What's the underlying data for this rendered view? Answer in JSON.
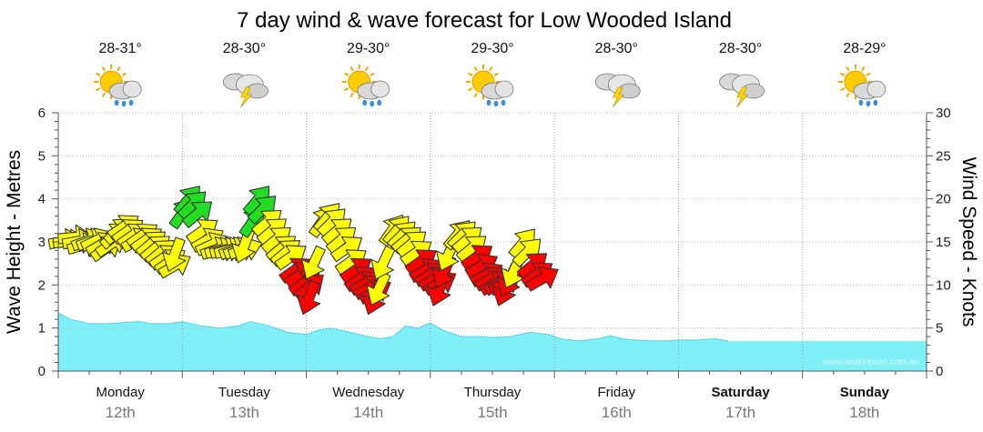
{
  "chart_data": {
    "type": "area",
    "title": "7 day wind & wave forecast for Low Wooded Island",
    "ylabel_left": "Wave Height - Metres",
    "ylabel_right": "Wind Speed - Knots",
    "ylim_left": [
      0,
      6
    ],
    "ylim_right": [
      0,
      30
    ],
    "yticks_left": [
      "0",
      "1",
      "2",
      "3",
      "4",
      "5",
      "6"
    ],
    "yticks_right": [
      "0",
      "5",
      "10",
      "15",
      "20",
      "25",
      "30"
    ],
    "credit": "www.seabreeze.com.au",
    "days": [
      {
        "name": "Monday",
        "date": "12th",
        "temp": "28-31°",
        "weather": "sun-cloud-showers",
        "bold": false
      },
      {
        "name": "Tuesday",
        "date": "13th",
        "temp": "28-30°",
        "weather": "storm",
        "bold": false
      },
      {
        "name": "Wednesday",
        "date": "14th",
        "temp": "29-30°",
        "weather": "sun-cloud-showers",
        "bold": false
      },
      {
        "name": "Thursday",
        "date": "15th",
        "temp": "29-30°",
        "weather": "sun-cloud-showers",
        "bold": false
      },
      {
        "name": "Friday",
        "date": "16th",
        "temp": "28-30°",
        "weather": "storm",
        "bold": false
      },
      {
        "name": "Saturday",
        "date": "17th",
        "temp": "28-30°",
        "weather": "storm",
        "bold": true
      },
      {
        "name": "Sunday",
        "date": "18th",
        "temp": "28-29°",
        "weather": "sun-cloud-showers",
        "bold": true
      }
    ],
    "wave_series": {
      "name": "Wave Height (m)",
      "color": "#7ff0f8",
      "edge_color": "#55d0e6",
      "points": [
        [
          0,
          1.35
        ],
        [
          0.2,
          1.2
        ],
        [
          0.5,
          1.1
        ],
        [
          0.8,
          1.1
        ],
        [
          1.0,
          1.12
        ],
        [
          1.3,
          1.15
        ],
        [
          1.5,
          1.1
        ],
        [
          1.8,
          1.1
        ],
        [
          2.0,
          1.15
        ],
        [
          2.3,
          1.05
        ],
        [
          2.6,
          1.0
        ],
        [
          2.9,
          1.05
        ],
        [
          3.1,
          1.15
        ],
        [
          3.4,
          1.05
        ],
        [
          3.7,
          0.9
        ],
        [
          4.0,
          0.85
        ],
        [
          4.2,
          0.95
        ],
        [
          4.4,
          1.0
        ],
        [
          4.7,
          0.9
        ],
        [
          5.0,
          0.8
        ],
        [
          5.2,
          0.75
        ],
        [
          5.4,
          0.8
        ],
        [
          5.6,
          1.05
        ],
        [
          5.8,
          1.0
        ],
        [
          6.0,
          1.12
        ],
        [
          6.2,
          0.95
        ],
        [
          6.5,
          0.8
        ],
        [
          6.8,
          0.8
        ],
        [
          7.0,
          0.78
        ],
        [
          7.3,
          0.8
        ],
        [
          7.6,
          0.9
        ],
        [
          7.9,
          0.85
        ],
        [
          8.1,
          0.75
        ],
        [
          8.4,
          0.7
        ],
        [
          8.7,
          0.75
        ],
        [
          8.9,
          0.82
        ],
        [
          9.1,
          0.75
        ],
        [
          9.3,
          0.72
        ],
        [
          9.6,
          0.7
        ],
        [
          9.8,
          0.7
        ],
        [
          10.0,
          0.72
        ],
        [
          10.3,
          0.72
        ],
        [
          10.6,
          0.75
        ],
        [
          10.8,
          0.7
        ]
      ]
    },
    "wind_series": {
      "name": "Wind Speed (kn)",
      "colors": {
        "green": "#22dd22",
        "yellow": "#ffff00",
        "red": "#ff0000"
      },
      "arrows": [
        {
          "x": 0.05,
          "kn": 15,
          "dir": 80,
          "c": "yellow"
        },
        {
          "x": 0.12,
          "kn": 15,
          "dir": 85,
          "c": "yellow"
        },
        {
          "x": 0.2,
          "kn": 15.5,
          "dir": 85,
          "c": "yellow"
        },
        {
          "x": 0.27,
          "kn": 15,
          "dir": 80,
          "c": "yellow"
        },
        {
          "x": 0.35,
          "kn": 14.5,
          "dir": 75,
          "c": "yellow"
        },
        {
          "x": 0.42,
          "kn": 15,
          "dir": 70,
          "c": "yellow"
        },
        {
          "x": 0.5,
          "kn": 15,
          "dir": 70,
          "c": "yellow"
        },
        {
          "x": 0.57,
          "kn": 15,
          "dir": 65,
          "c": "yellow"
        },
        {
          "x": 0.65,
          "kn": 14.5,
          "dir": 60,
          "c": "yellow"
        },
        {
          "x": 0.72,
          "kn": 14,
          "dir": 55,
          "c": "yellow"
        },
        {
          "x": 0.8,
          "kn": 14.5,
          "dir": 55,
          "c": "yellow"
        },
        {
          "x": 0.87,
          "kn": 15.5,
          "dir": 50,
          "c": "yellow"
        },
        {
          "x": 0.93,
          "kn": 16,
          "dir": 50,
          "c": "yellow"
        },
        {
          "x": 1.0,
          "kn": 16.5,
          "dir": 55,
          "c": "yellow"
        },
        {
          "x": 1.07,
          "kn": 16,
          "dir": 55,
          "c": "yellow"
        },
        {
          "x": 1.15,
          "kn": 15.5,
          "dir": 55,
          "c": "yellow"
        },
        {
          "x": 1.22,
          "kn": 15,
          "dir": 60,
          "c": "yellow"
        },
        {
          "x": 1.3,
          "kn": 15.5,
          "dir": 55,
          "c": "yellow"
        },
        {
          "x": 1.37,
          "kn": 15,
          "dir": 55,
          "c": "yellow"
        },
        {
          "x": 1.45,
          "kn": 14.5,
          "dir": 50,
          "c": "yellow"
        },
        {
          "x": 1.52,
          "kn": 14,
          "dir": 50,
          "c": "yellow"
        },
        {
          "x": 1.6,
          "kn": 13.5,
          "dir": 50,
          "c": "yellow"
        },
        {
          "x": 1.67,
          "kn": 13,
          "dir": 55,
          "c": "yellow"
        },
        {
          "x": 1.75,
          "kn": 12.5,
          "dir": 55,
          "c": "yellow"
        },
        {
          "x": 1.82,
          "kn": 12,
          "dir": 60,
          "c": "yellow"
        },
        {
          "x": 1.9,
          "kn": 14,
          "dir": 200,
          "c": "yellow"
        },
        {
          "x": 1.97,
          "kn": 18,
          "dir": 35,
          "c": "green"
        },
        {
          "x": 2.05,
          "kn": 19.5,
          "dir": 40,
          "c": "green"
        },
        {
          "x": 2.12,
          "kn": 19,
          "dir": 45,
          "c": "green"
        },
        {
          "x": 2.2,
          "kn": 18,
          "dir": 50,
          "c": "green"
        },
        {
          "x": 2.27,
          "kn": 16,
          "dir": 55,
          "c": "yellow"
        },
        {
          "x": 2.35,
          "kn": 15,
          "dir": 60,
          "c": "yellow"
        },
        {
          "x": 2.42,
          "kn": 14.5,
          "dir": 65,
          "c": "yellow"
        },
        {
          "x": 2.5,
          "kn": 14,
          "dir": 70,
          "c": "yellow"
        },
        {
          "x": 2.57,
          "kn": 14,
          "dir": 75,
          "c": "yellow"
        },
        {
          "x": 2.65,
          "kn": 14,
          "dir": 75,
          "c": "yellow"
        },
        {
          "x": 2.72,
          "kn": 14,
          "dir": 75,
          "c": "yellow"
        },
        {
          "x": 2.8,
          "kn": 14,
          "dir": 70,
          "c": "yellow"
        },
        {
          "x": 2.87,
          "kn": 14,
          "dir": 70,
          "c": "yellow"
        },
        {
          "x": 2.95,
          "kn": 14,
          "dir": 70,
          "c": "yellow"
        },
        {
          "x": 3.02,
          "kn": 15,
          "dir": 200,
          "c": "yellow"
        },
        {
          "x": 3.1,
          "kn": 17,
          "dir": 35,
          "c": "green"
        },
        {
          "x": 3.17,
          "kn": 19.5,
          "dir": 40,
          "c": "green"
        },
        {
          "x": 3.25,
          "kn": 18.5,
          "dir": 45,
          "c": "green"
        },
        {
          "x": 3.32,
          "kn": 17,
          "dir": 50,
          "c": "yellow"
        },
        {
          "x": 3.4,
          "kn": 16,
          "dir": 50,
          "c": "yellow"
        },
        {
          "x": 3.47,
          "kn": 15,
          "dir": 50,
          "c": "yellow"
        },
        {
          "x": 3.55,
          "kn": 14,
          "dir": 50,
          "c": "yellow"
        },
        {
          "x": 3.62,
          "kn": 13.5,
          "dir": 50,
          "c": "yellow"
        },
        {
          "x": 3.7,
          "kn": 13,
          "dir": 55,
          "c": "yellow"
        },
        {
          "x": 3.77,
          "kn": 11.5,
          "dir": 55,
          "c": "red"
        },
        {
          "x": 3.85,
          "kn": 11,
          "dir": 55,
          "c": "red"
        },
        {
          "x": 3.92,
          "kn": 10,
          "dir": 55,
          "c": "red"
        },
        {
          "x": 4.0,
          "kn": 9.5,
          "dir": 50,
          "c": "red"
        },
        {
          "x": 4.07,
          "kn": 9,
          "dir": 200,
          "c": "red"
        },
        {
          "x": 4.15,
          "kn": 13,
          "dir": 205,
          "c": "yellow"
        },
        {
          "x": 4.22,
          "kn": 17,
          "dir": 35,
          "c": "yellow"
        },
        {
          "x": 4.3,
          "kn": 17.5,
          "dir": 40,
          "c": "yellow"
        },
        {
          "x": 4.37,
          "kn": 17,
          "dir": 45,
          "c": "yellow"
        },
        {
          "x": 4.45,
          "kn": 16,
          "dir": 50,
          "c": "yellow"
        },
        {
          "x": 4.52,
          "kn": 15,
          "dir": 50,
          "c": "yellow"
        },
        {
          "x": 4.6,
          "kn": 14,
          "dir": 55,
          "c": "yellow"
        },
        {
          "x": 4.67,
          "kn": 12.5,
          "dir": 55,
          "c": "yellow"
        },
        {
          "x": 4.75,
          "kn": 11.5,
          "dir": 55,
          "c": "red"
        },
        {
          "x": 4.82,
          "kn": 10.5,
          "dir": 55,
          "c": "red"
        },
        {
          "x": 4.9,
          "kn": 10,
          "dir": 60,
          "c": "red"
        },
        {
          "x": 4.97,
          "kn": 9.5,
          "dir": 60,
          "c": "red"
        },
        {
          "x": 5.05,
          "kn": 9,
          "dir": 60,
          "c": "red"
        },
        {
          "x": 5.12,
          "kn": 9,
          "dir": 200,
          "c": "red"
        },
        {
          "x": 5.2,
          "kn": 10,
          "dir": 205,
          "c": "yellow"
        },
        {
          "x": 5.27,
          "kn": 13,
          "dir": 205,
          "c": "yellow"
        },
        {
          "x": 5.35,
          "kn": 16,
          "dir": 35,
          "c": "yellow"
        },
        {
          "x": 5.42,
          "kn": 16,
          "dir": 40,
          "c": "yellow"
        },
        {
          "x": 5.5,
          "kn": 15.5,
          "dir": 45,
          "c": "yellow"
        },
        {
          "x": 5.57,
          "kn": 15,
          "dir": 50,
          "c": "yellow"
        },
        {
          "x": 5.65,
          "kn": 14.5,
          "dir": 50,
          "c": "yellow"
        },
        {
          "x": 5.72,
          "kn": 13.5,
          "dir": 55,
          "c": "yellow"
        },
        {
          "x": 5.8,
          "kn": 12.5,
          "dir": 55,
          "c": "red"
        },
        {
          "x": 5.87,
          "kn": 11.5,
          "dir": 60,
          "c": "red"
        },
        {
          "x": 5.95,
          "kn": 11,
          "dir": 60,
          "c": "red"
        },
        {
          "x": 6.02,
          "kn": 10.5,
          "dir": 60,
          "c": "red"
        },
        {
          "x": 6.1,
          "kn": 10,
          "dir": 60,
          "c": "red"
        },
        {
          "x": 6.17,
          "kn": 10,
          "dir": 200,
          "c": "red"
        },
        {
          "x": 6.25,
          "kn": 12,
          "dir": 205,
          "c": "red"
        },
        {
          "x": 6.32,
          "kn": 14,
          "dir": 205,
          "c": "yellow"
        },
        {
          "x": 6.4,
          "kn": 15.5,
          "dir": 40,
          "c": "yellow"
        },
        {
          "x": 6.47,
          "kn": 15.5,
          "dir": 45,
          "c": "yellow"
        },
        {
          "x": 6.55,
          "kn": 15,
          "dir": 50,
          "c": "yellow"
        },
        {
          "x": 6.62,
          "kn": 14,
          "dir": 50,
          "c": "yellow"
        },
        {
          "x": 6.7,
          "kn": 13,
          "dir": 55,
          "c": "red"
        },
        {
          "x": 6.77,
          "kn": 12,
          "dir": 60,
          "c": "red"
        },
        {
          "x": 6.85,
          "kn": 11,
          "dir": 60,
          "c": "red"
        },
        {
          "x": 6.92,
          "kn": 10.5,
          "dir": 60,
          "c": "red"
        },
        {
          "x": 7.0,
          "kn": 10,
          "dir": 60,
          "c": "red"
        },
        {
          "x": 7.07,
          "kn": 10,
          "dir": 60,
          "c": "red"
        },
        {
          "x": 7.15,
          "kn": 10,
          "dir": 60,
          "c": "red"
        },
        {
          "x": 7.22,
          "kn": 10,
          "dir": 200,
          "c": "red"
        },
        {
          "x": 7.3,
          "kn": 11,
          "dir": 205,
          "c": "red"
        },
        {
          "x": 7.37,
          "kn": 12,
          "dir": 205,
          "c": "yellow"
        },
        {
          "x": 7.45,
          "kn": 14.5,
          "dir": 40,
          "c": "yellow"
        },
        {
          "x": 7.52,
          "kn": 13.5,
          "dir": 45,
          "c": "yellow"
        },
        {
          "x": 7.6,
          "kn": 12,
          "dir": 50,
          "c": "red"
        },
        {
          "x": 7.67,
          "kn": 11,
          "dir": 55,
          "c": "red"
        },
        {
          "x": 7.75,
          "kn": 10.5,
          "dir": 60,
          "c": "red"
        }
      ]
    }
  }
}
